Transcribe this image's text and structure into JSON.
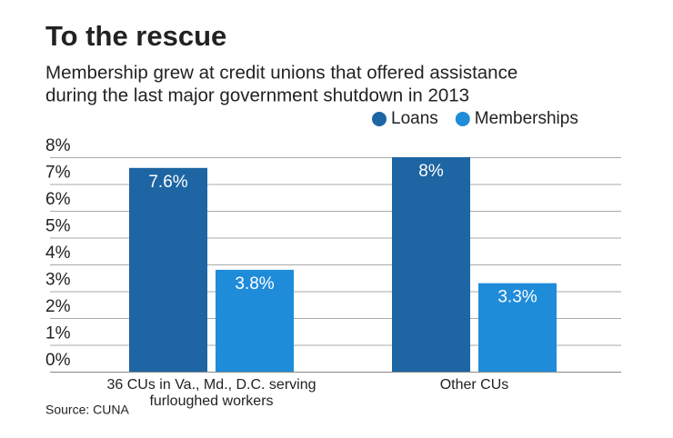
{
  "chart_data": {
    "type": "bar",
    "title": "To the rescue",
    "subtitle": [
      "Membership grew at credit unions that offered assistance",
      "during the last major government shutdown in 2013"
    ],
    "categories": [
      "36 CUs in Va., Md., D.C. serving furloughed workers",
      "Other CUs"
    ],
    "series": [
      {
        "name": "Loans",
        "color": "#1d65a3",
        "values": [
          7.6,
          8
        ],
        "value_labels": [
          "7.6%",
          "8%"
        ]
      },
      {
        "name": "Memberships",
        "color": "#1f8cda",
        "values": [
          3.8,
          3.3
        ],
        "value_labels": [
          "3.8%",
          "3.3%"
        ]
      }
    ],
    "ylim": [
      0,
      8
    ],
    "yticks": [
      {
        "value": 0,
        "label": "0%"
      },
      {
        "value": 1,
        "label": "1%"
      },
      {
        "value": 2,
        "label": "2%"
      },
      {
        "value": 3,
        "label": "3%"
      },
      {
        "value": 4,
        "label": "4%"
      },
      {
        "value": 5,
        "label": "5%"
      },
      {
        "value": 6,
        "label": "6%"
      },
      {
        "value": 7,
        "label": "7%"
      },
      {
        "value": 8,
        "label": "8%"
      }
    ],
    "grid": true,
    "legend": "top-right",
    "source": "Source: CUNA"
  }
}
